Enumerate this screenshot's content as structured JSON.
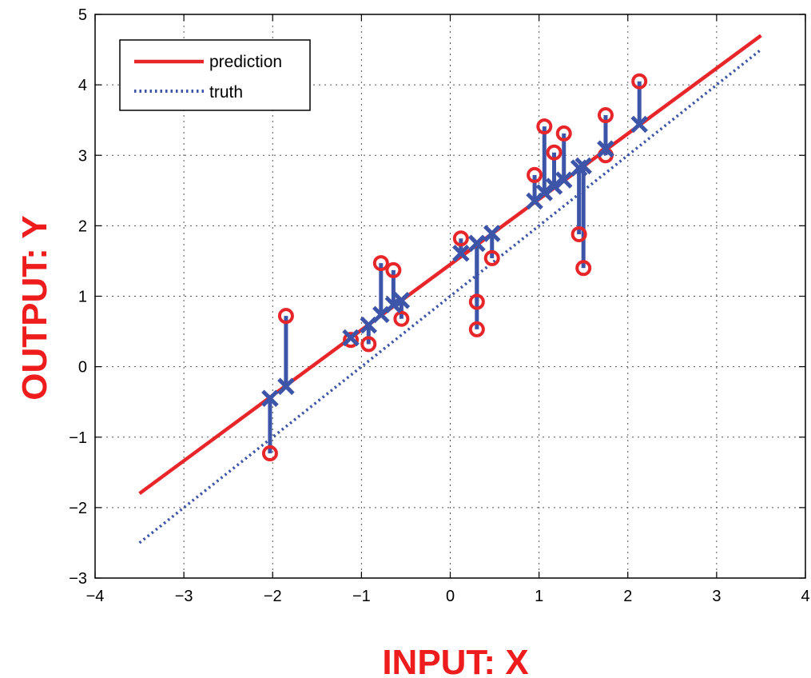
{
  "chart_data": {
    "type": "scatter",
    "xlabel": "INPUT: X",
    "ylabel": "OUTPUT: Y",
    "xlim": [
      -4,
      4
    ],
    "ylim": [
      -3,
      5
    ],
    "x_ticks": [
      -4,
      -3,
      -2,
      -1,
      0,
      1,
      2,
      3,
      4
    ],
    "y_ticks": [
      -3,
      -2,
      -1,
      0,
      1,
      2,
      3,
      4,
      5
    ],
    "grid": true,
    "grid_style": "dotted",
    "legend_position": "top-left",
    "legend": [
      {
        "label": "prediction",
        "style": "solid",
        "color": "#e8262a"
      },
      {
        "label": "truth",
        "style": "dotted",
        "color": "#3d55a8"
      }
    ],
    "series": [
      {
        "name": "prediction",
        "type": "line",
        "color": "#e8262a",
        "x": [
          -3.5,
          3.5
        ],
        "y": [
          -1.8,
          4.7
        ]
      },
      {
        "name": "truth",
        "type": "line",
        "color": "#3d55a8",
        "x": [
          -3.5,
          3.5
        ],
        "y": [
          -2.5,
          4.5
        ]
      }
    ],
    "points": [
      {
        "x": -2.03,
        "observed": -1.23,
        "predicted": -0.45
      },
      {
        "x": -1.85,
        "observed": 0.72,
        "predicted": -0.28
      },
      {
        "x": -1.12,
        "observed": 0.38,
        "predicted": 0.41
      },
      {
        "x": -0.92,
        "observed": 0.32,
        "predicted": 0.59
      },
      {
        "x": -0.78,
        "observed": 1.47,
        "predicted": 0.74
      },
      {
        "x": -0.64,
        "observed": 1.37,
        "predicted": 0.88
      },
      {
        "x": -0.55,
        "observed": 0.68,
        "predicted": 0.94
      },
      {
        "x": 0.12,
        "observed": 1.82,
        "predicted": 1.61
      },
      {
        "x": 0.3,
        "observed": 0.92,
        "predicted": 1.75
      },
      {
        "x": 0.3,
        "observed": 0.53,
        "predicted": 1.75
      },
      {
        "x": 0.47,
        "observed": 1.54,
        "predicted": 1.89
      },
      {
        "x": 0.95,
        "observed": 2.72,
        "predicted": 2.35
      },
      {
        "x": 1.06,
        "observed": 3.41,
        "predicted": 2.47
      },
      {
        "x": 1.17,
        "observed": 3.04,
        "predicted": 2.56
      },
      {
        "x": 1.28,
        "observed": 3.31,
        "predicted": 2.65
      },
      {
        "x": 1.45,
        "observed": 1.88,
        "predicted": 2.82
      },
      {
        "x": 1.5,
        "observed": 1.4,
        "predicted": 2.85
      },
      {
        "x": 1.75,
        "observed": 3.57,
        "predicted": 3.09
      },
      {
        "x": 1.75,
        "observed": 3.0,
        "predicted": 3.09
      },
      {
        "x": 2.13,
        "observed": 4.05,
        "predicted": 3.44
      }
    ]
  }
}
